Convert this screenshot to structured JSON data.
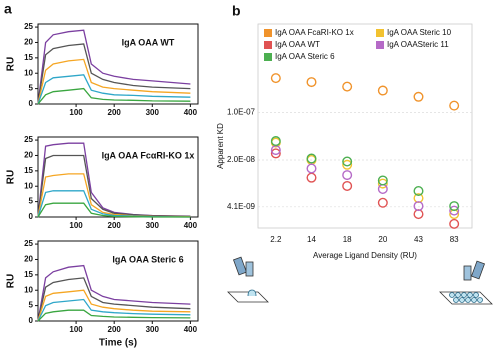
{
  "chart_data": [
    {
      "type": "line",
      "panel_label": "a",
      "title": "IgA OAA WT",
      "ylabel": "RU",
      "x": [
        0,
        20,
        40,
        80,
        120,
        140,
        170,
        200,
        250,
        300,
        400
      ],
      "xlim": [
        0,
        420
      ],
      "xticks": [
        100,
        200,
        300,
        400
      ],
      "ylim": [
        0,
        26
      ],
      "yticks": [
        0,
        5,
        10,
        15,
        20,
        25
      ],
      "series": [
        {
          "color": "#7b3fa0",
          "values": [
            0,
            20,
            22.5,
            23.5,
            24,
            13,
            10,
            9,
            8,
            7.5,
            6.5
          ]
        },
        {
          "color": "#555555",
          "values": [
            0,
            16,
            18,
            19,
            19.5,
            10,
            8,
            7,
            6,
            5.5,
            5
          ]
        },
        {
          "color": "#f5a623",
          "values": [
            0,
            11,
            13,
            14,
            14.5,
            7,
            5.5,
            5,
            4.5,
            4,
            3.5
          ]
        },
        {
          "color": "#2fa7c9",
          "values": [
            0,
            7,
            8.5,
            9,
            9.5,
            4.5,
            3.5,
            3,
            2.8,
            2.5,
            2.2
          ]
        },
        {
          "color": "#3aa640",
          "values": [
            0,
            3,
            4,
            4.5,
            5,
            2,
            1.5,
            1.3,
            1.2,
            1,
            0.9
          ]
        }
      ]
    },
    {
      "type": "line",
      "title": "IgA OAA FcαRI-KO 1x",
      "ylabel": "RU",
      "x": [
        0,
        20,
        40,
        80,
        120,
        140,
        170,
        200,
        250,
        300,
        400
      ],
      "xlim": [
        0,
        420
      ],
      "xticks": [
        100,
        200,
        300,
        400
      ],
      "ylim": [
        0,
        26
      ],
      "yticks": [
        0,
        5,
        10,
        15,
        20,
        25
      ],
      "series": [
        {
          "color": "#7b3fa0",
          "values": [
            0,
            23,
            23.5,
            24,
            24,
            8,
            3,
            1.5,
            0.8,
            0.5,
            0.3
          ]
        },
        {
          "color": "#555555",
          "values": [
            0,
            19,
            20,
            20,
            20,
            6,
            2.5,
            1.2,
            0.7,
            0.4,
            0.2
          ]
        },
        {
          "color": "#f5a623",
          "values": [
            0,
            13,
            13.5,
            14,
            14,
            4,
            1.5,
            0.8,
            0.4,
            0.2,
            0.1
          ]
        },
        {
          "color": "#2fa7c9",
          "values": [
            0,
            8,
            8.5,
            8.5,
            8.5,
            2.5,
            1,
            0.5,
            0.3,
            0.1,
            0
          ]
        },
        {
          "color": "#3aa640",
          "values": [
            0,
            4,
            4.5,
            4.5,
            4.5,
            1.2,
            0.5,
            0.2,
            0.1,
            0,
            0
          ]
        }
      ]
    },
    {
      "type": "line",
      "title": "IgA OAA Steric 6",
      "ylabel": "RU",
      "xlabel": "Time (s)",
      "x": [
        0,
        20,
        40,
        80,
        120,
        140,
        170,
        200,
        250,
        300,
        400
      ],
      "xlim": [
        0,
        420
      ],
      "xticks": [
        100,
        200,
        300,
        400
      ],
      "ylim": [
        0,
        26
      ],
      "yticks": [
        0,
        5,
        10,
        15,
        20,
        25
      ],
      "series": [
        {
          "color": "#7b3fa0",
          "values": [
            0,
            14,
            16,
            17.5,
            18,
            10,
            8,
            7,
            6.5,
            6,
            5.5
          ]
        },
        {
          "color": "#555555",
          "values": [
            0,
            11,
            12.5,
            13.5,
            14,
            8,
            6,
            5.5,
            5,
            4.5,
            4
          ]
        },
        {
          "color": "#f5a623",
          "values": [
            0,
            8,
            9,
            9.5,
            10,
            5.5,
            4.5,
            4,
            3.5,
            3.2,
            3
          ]
        },
        {
          "color": "#2fa7c9",
          "values": [
            0,
            5,
            6,
            6.5,
            7,
            3.5,
            3,
            2.7,
            2.4,
            2.2,
            2
          ]
        },
        {
          "color": "#3aa640",
          "values": [
            0,
            2.5,
            3,
            3.5,
            3.5,
            1.8,
            1.5,
            1.3,
            1.2,
            1.1,
            1
          ]
        }
      ]
    },
    {
      "type": "scatter",
      "panel_label": "b",
      "xlabel": "Average Ligand Density (RU)",
      "ylabel": "Apparent KD",
      "categories": [
        "2.2",
        "14",
        "18",
        "20",
        "43",
        "83"
      ],
      "log_scale": "y",
      "grid": true,
      "ylim": [
        2e-09,
        2e-06
      ],
      "yticks": [
        {
          "value": 4.1e-09,
          "label": "4.1E-09"
        },
        {
          "value": 2e-08,
          "label": "2.0E-08"
        },
        {
          "value": 1e-07,
          "label": "1.0E-07"
        }
      ],
      "series": [
        {
          "name": "IgA OAA FcaRI-KO 1x",
          "color": "#f0932b",
          "values": [
            3.2e-07,
            2.8e-07,
            2.4e-07,
            2.1e-07,
            1.7e-07,
            1.26e-07
          ]
        },
        {
          "name": "IgA OAA Steric 10",
          "color": "#f2c230",
          "values": [
            3.6e-08,
            2e-08,
            1.7e-08,
            9e-09,
            5.5e-09,
            3.2e-09
          ]
        },
        {
          "name": "IgA OAA WT",
          "color": "#e05252",
          "values": [
            2.5e-08,
            1.1e-08,
            8.3e-09,
            4.7e-09,
            3.2e-09,
            2.3e-09
          ]
        },
        {
          "name": "IgA  OAASteric 11",
          "color": "#b56ac7",
          "values": [
            2.8e-08,
            1.5e-08,
            1.2e-08,
            7.5e-09,
            4.2e-09,
            3.6e-09
          ]
        },
        {
          "name": "IgA OAA Steric 6",
          "color": "#4caf50",
          "values": [
            3.8e-08,
            2.1e-08,
            1.9e-08,
            1e-08,
            7e-09,
            4.2e-09
          ]
        }
      ]
    }
  ]
}
